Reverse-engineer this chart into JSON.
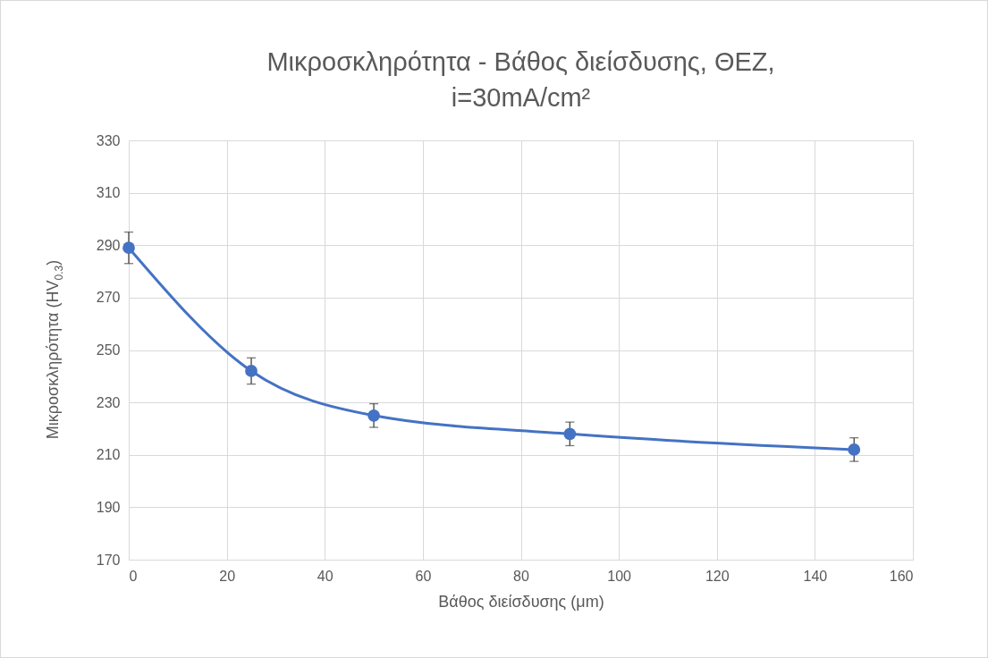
{
  "chart_data": {
    "type": "line",
    "title": "Μικροσκληρότητα - Βάθος διείσδυσης, ΘΕΖ, i=30mA/cm²",
    "xlabel": "Βάθος διείσδυσης (μm)",
    "ylabel": "Μικροσκληρότητα (HV$_{0.3}$)",
    "x": [
      0,
      25,
      50,
      90,
      148
    ],
    "series": [
      {
        "color": "#4472c4",
        "values": [
          289,
          242,
          225,
          218,
          212
        ],
        "errors": [
          6,
          5,
          4.5,
          4.5,
          4.5
        ]
      }
    ],
    "xlim": [
      0,
      160
    ],
    "xticks": [
      0,
      20,
      40,
      60,
      80,
      100,
      120,
      140,
      160
    ],
    "ylim": [
      170,
      330
    ],
    "yticks": [
      170,
      190,
      210,
      230,
      250,
      270,
      290,
      310,
      330
    ],
    "grid": true,
    "marker": "circle",
    "line_style": "solid"
  }
}
